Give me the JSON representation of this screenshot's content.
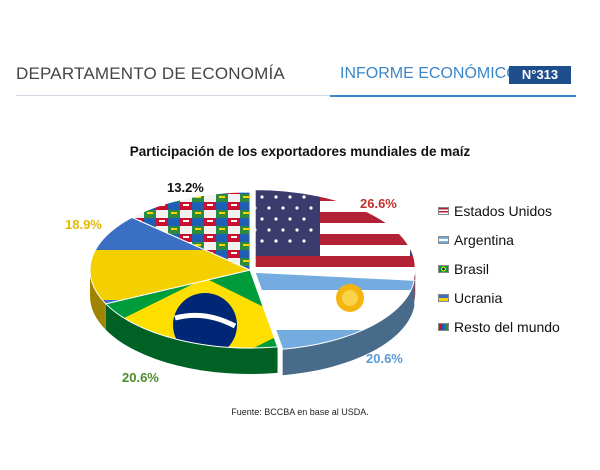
{
  "header": {
    "department": "DEPARTAMENTO DE ECONOMÍA",
    "report": "INFORME ECONÓMICO",
    "number": "N°313"
  },
  "chart_data": {
    "type": "pie",
    "title": "Participación de los exportadores mundiales de maíz",
    "slices": [
      {
        "label": "Estados Unidos",
        "value": 26.6,
        "value_label": "26.6%",
        "color": "#b22234",
        "label_color": "#c0302e",
        "pattern": "usa-flag"
      },
      {
        "label": "Argentina",
        "value": 20.6,
        "value_label": "20.6%",
        "color": "#74acdf",
        "label_color": "#5b9bd5",
        "pattern": "argentina-flag"
      },
      {
        "label": "Brasil",
        "value": 20.6,
        "value_label": "20.6%",
        "color": "#009c3b",
        "label_color": "#4f8a2a",
        "pattern": "brazil-flag"
      },
      {
        "label": "Ucrania",
        "value": 18.9,
        "value_label": "18.9%",
        "color": "#ffd500",
        "label_color": "#e6b800",
        "pattern": "ukraine-flag"
      },
      {
        "label": "Resto del mundo",
        "value": 13.2,
        "value_label": "13.2%",
        "color": "#7a5c4a",
        "label_color": "#111111",
        "pattern": "world-flags"
      }
    ],
    "legend_position": "right"
  },
  "source": "Fuente: BCCBA en base al USDA."
}
